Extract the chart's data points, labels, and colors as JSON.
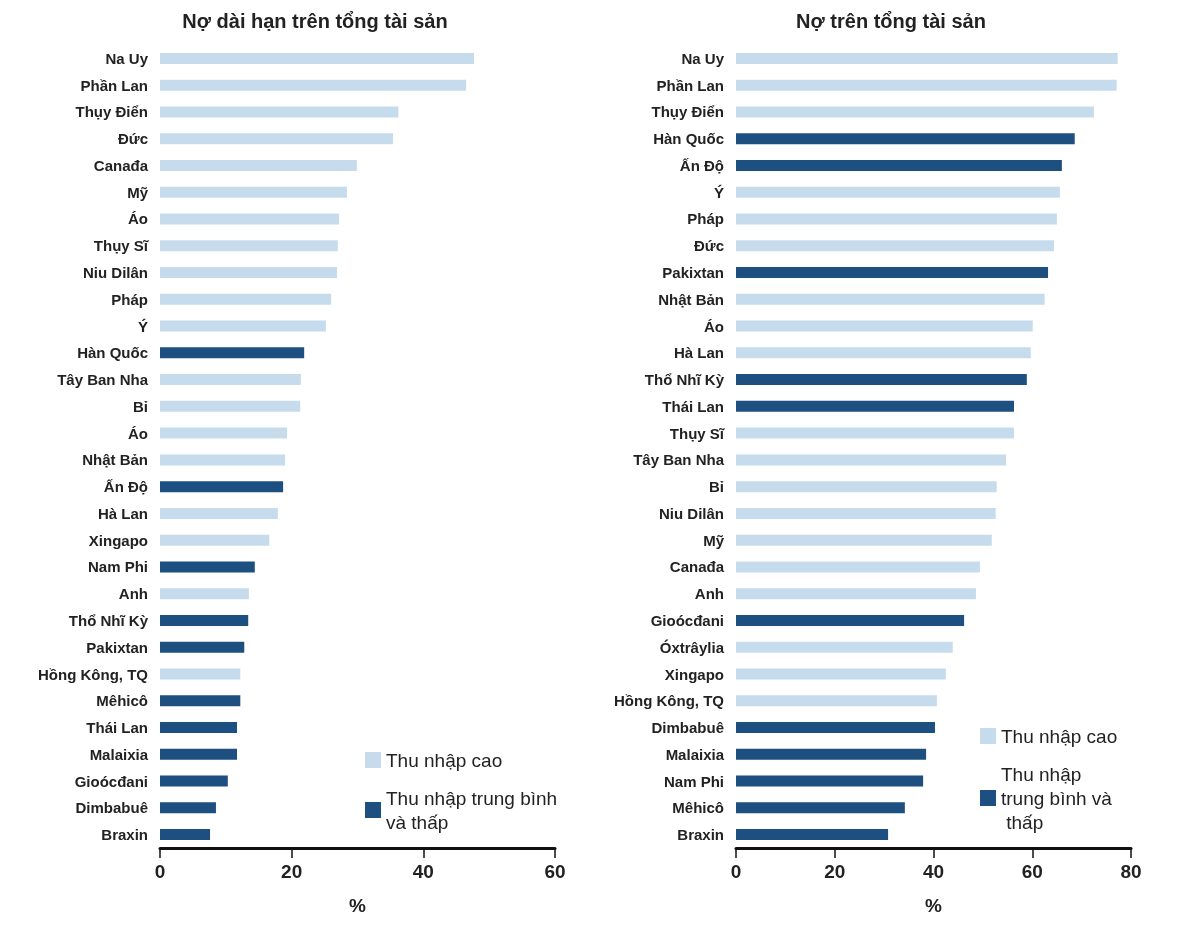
{
  "chart_data": [
    {
      "type": "bar",
      "orientation": "horizontal",
      "stacked": true,
      "title": "Nợ dài hạn trên tổng tài sản",
      "xlabel": "%",
      "categories": [
        "Na Uy",
        "Phần Lan",
        "Thụy Điển",
        "Đức",
        "Canađa",
        "Mỹ",
        "Áo",
        "Thụy Sĩ",
        "Niu Dilân",
        "Pháp",
        "Ý",
        "Hàn Quốc",
        "Tây Ban Nha",
        "Bỉ",
        "Áo",
        "Nhật Bản",
        "Ấn Độ",
        "Hà Lan",
        "Xingapo",
        "Nam Phi",
        "Anh",
        "Thổ Nhĩ Kỳ",
        "Pakixtan",
        "Hồng Kông, TQ",
        "Mêhicô",
        "Thái Lan",
        "Malaixia",
        "Gioócđani",
        "Dimbabuê",
        "Braxin"
      ],
      "series": [
        {
          "name": "Thu nhập cao",
          "color": "#c6dced",
          "values": [
            47.7,
            46.5,
            36.2,
            35.4,
            29.9,
            28.4,
            27.2,
            27,
            26.9,
            26,
            25.2,
            null,
            21.4,
            21.3,
            19.3,
            19,
            null,
            17.9,
            16.6,
            null,
            13.5,
            null,
            null,
            12.2,
            null,
            null,
            null,
            null,
            null,
            null
          ]
        },
        {
          "name": "Thu nhập trung bình và thấp",
          "color": "#1d4f80",
          "values": [
            null,
            null,
            null,
            null,
            null,
            null,
            null,
            null,
            null,
            null,
            null,
            21.9,
            null,
            null,
            null,
            null,
            18.7,
            null,
            null,
            14.4,
            null,
            13.4,
            12.8,
            null,
            12.2,
            11.7,
            11.7,
            10.3,
            8.5,
            7.6
          ]
        }
      ],
      "xlim": [
        0,
        60
      ],
      "xticks": [
        0,
        20,
        40,
        60
      ],
      "grid": false,
      "legend": "bottom right"
    },
    {
      "type": "bar",
      "orientation": "horizontal",
      "stacked": true,
      "title": "Nợ trên tổng tài sản",
      "xlabel": "%",
      "categories": [
        "Na Uy",
        "Phần Lan",
        "Thụy Điển",
        "Hàn Quốc",
        "Ấn Độ",
        "Ý",
        "Pháp",
        "Đức",
        "Pakixtan",
        "Nhật Bản",
        "Áo",
        "Hà Lan",
        "Thổ Nhĩ Kỳ",
        "Thái Lan",
        "Thụy Sĩ",
        "Tây Ban Nha",
        "Bỉ",
        "Niu Dilân",
        "Mỹ",
        "Canađa",
        "Anh",
        "Gioócđani",
        "Óxtrâylia",
        "Xingapo",
        "Hồng Kông, TQ",
        "Dimbabuê",
        "Malaixia",
        "Nam Phi",
        "Mêhicô",
        "Braxin"
      ],
      "series": [
        {
          "name": "Thu nhập cao",
          "color": "#c6dced",
          "values": [
            77.3,
            77.1,
            72.5,
            null,
            null,
            65.6,
            65,
            64.4,
            null,
            62.5,
            60.1,
            59.7,
            null,
            null,
            56.3,
            54.7,
            52.8,
            52.6,
            51.8,
            49.4,
            48.6,
            null,
            43.9,
            42.5,
            40.7,
            null,
            null,
            null,
            null,
            null
          ]
        },
        {
          "name": "Thu nhập trung bình và thấp",
          "color": "#1d4f80",
          "values": [
            null,
            null,
            null,
            68.6,
            66,
            null,
            null,
            null,
            63.2,
            null,
            null,
            null,
            58.9,
            56.3,
            null,
            null,
            null,
            null,
            null,
            null,
            null,
            46.2,
            null,
            null,
            null,
            40.3,
            38.5,
            37.9,
            34.2,
            30.8
          ]
        }
      ],
      "xlim": [
        0,
        80
      ],
      "xticks": [
        0,
        20,
        40,
        60,
        80
      ],
      "grid": false,
      "legend": "bottom right"
    }
  ]
}
